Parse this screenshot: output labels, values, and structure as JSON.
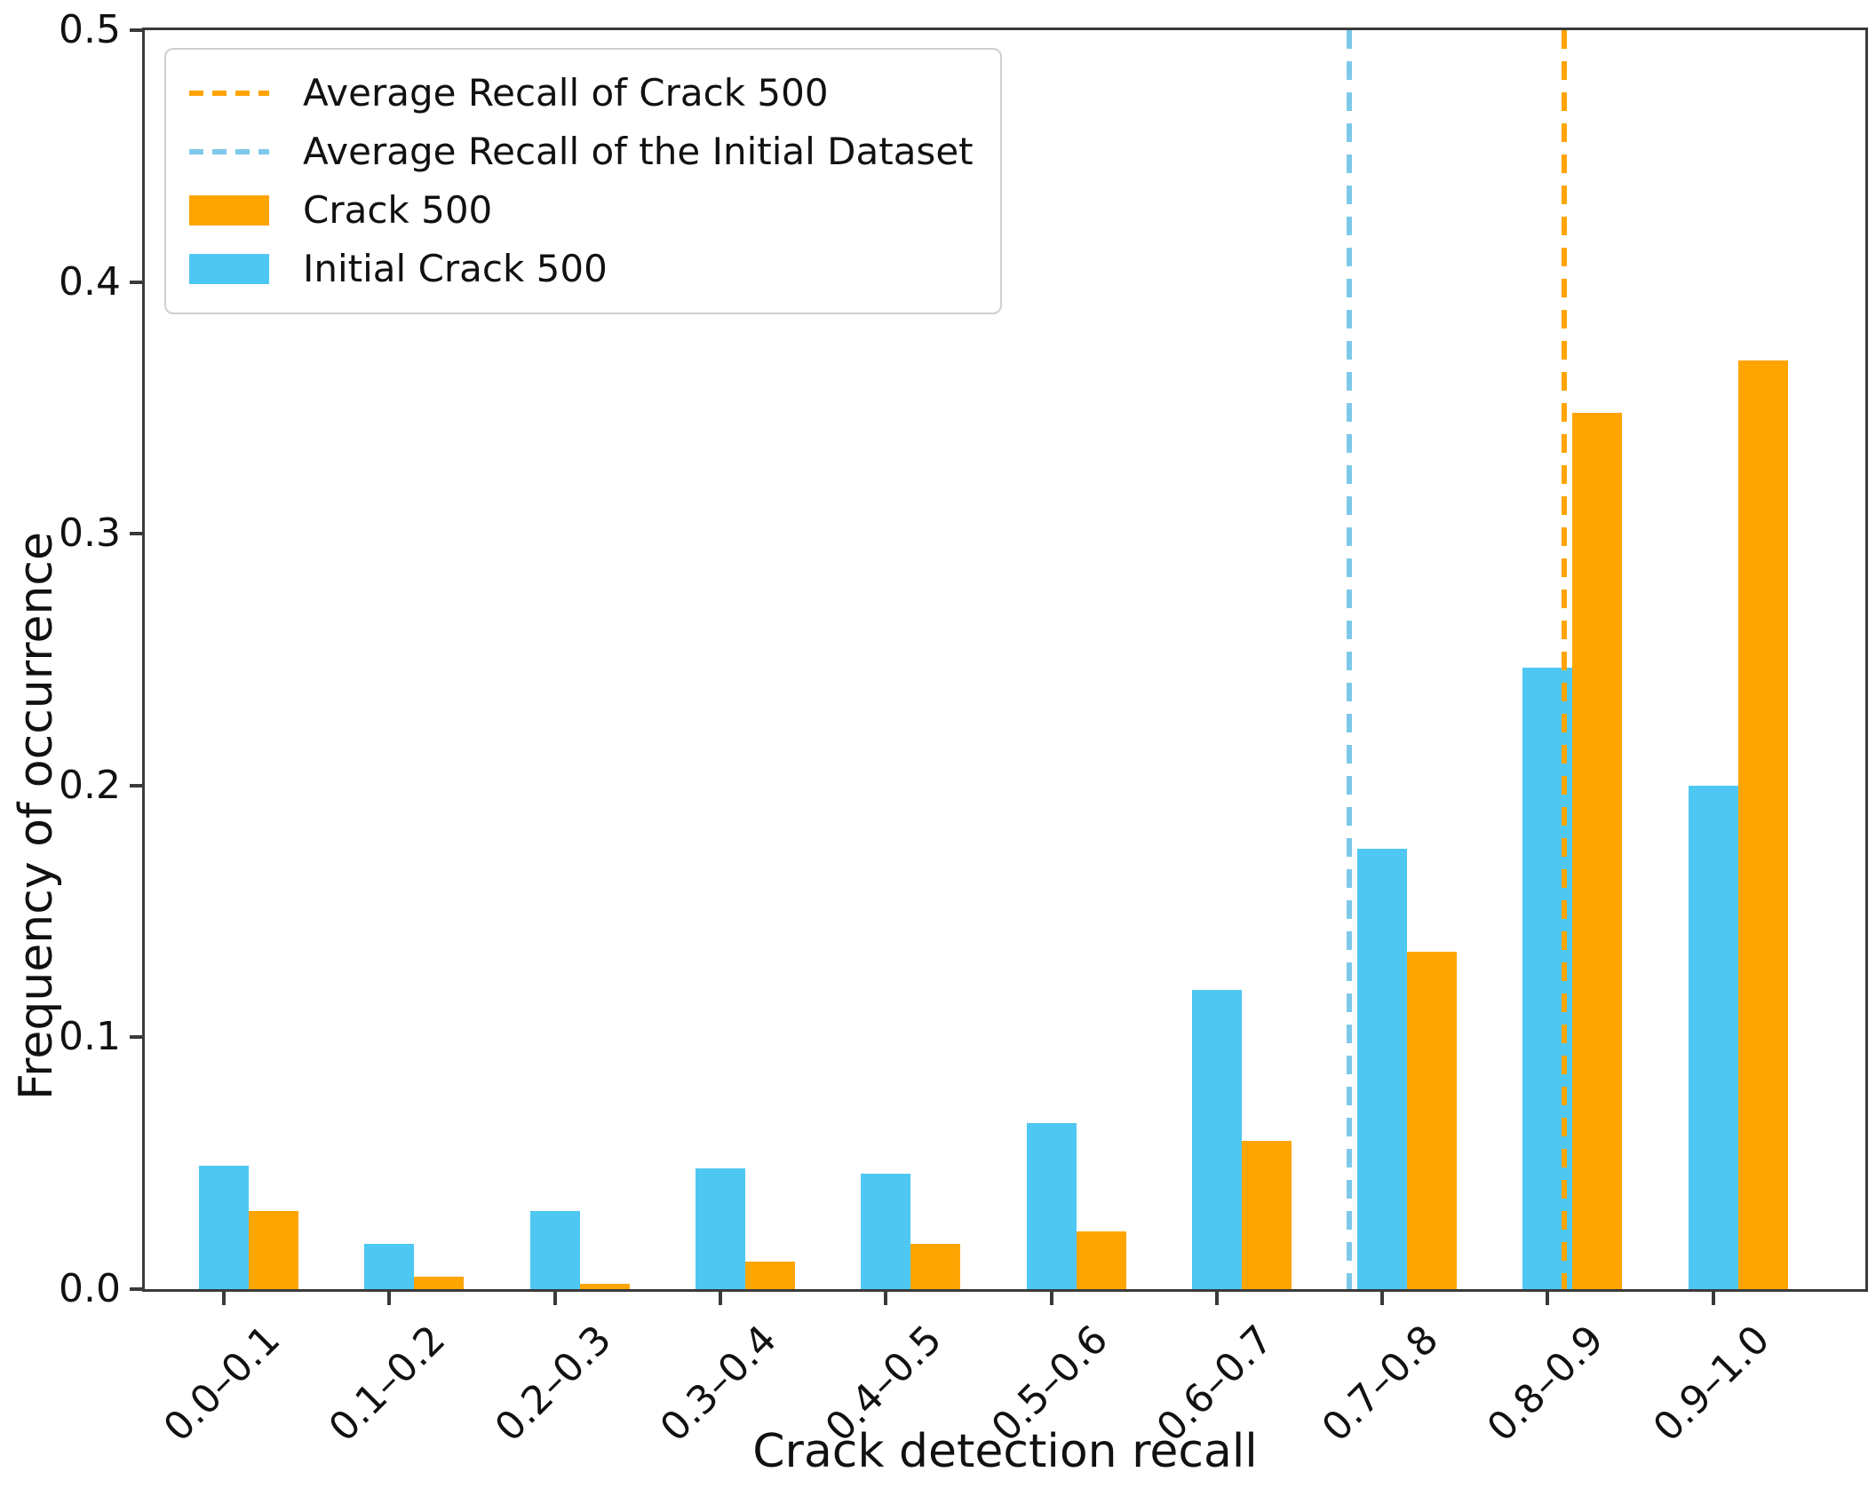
{
  "chart_data": {
    "type": "bar",
    "title": "",
    "xlabel": "Crack detection recall",
    "ylabel": "Frequency of occurrence",
    "categories": [
      "0.0–0.1",
      "0.1–0.2",
      "0.2–0.3",
      "0.3–0.4",
      "0.4–0.5",
      "0.5–0.6",
      "0.6–0.7",
      "0.7–0.8",
      "0.8–0.9",
      "0.9–1.0"
    ],
    "series": [
      {
        "name": "Initial Crack 500",
        "color": "#4EC7F2",
        "values": [
          0.049,
          0.018,
          0.031,
          0.048,
          0.046,
          0.066,
          0.119,
          0.175,
          0.247,
          0.2
        ]
      },
      {
        "name": "Crack 500",
        "color": "#FFA502",
        "values": [
          0.031,
          0.005,
          0.002,
          0.011,
          0.018,
          0.023,
          0.059,
          0.134,
          0.348,
          0.369
        ]
      }
    ],
    "vlines": [
      {
        "label": "Average Recall of Crack 500",
        "x": 0.86,
        "color": "#FFA502",
        "style": "dashed"
      },
      {
        "label": "Average Recall of the Initial Dataset",
        "x": 0.73,
        "color": "#7EC9E9",
        "style": "dashed"
      }
    ],
    "legend": {
      "position": "upper left",
      "entries": [
        {
          "type": "line",
          "label": "Average Recall of Crack 500",
          "color": "#FFA502"
        },
        {
          "type": "line",
          "label": "Average Recall of the Initial Dataset",
          "color": "#7EC9E9"
        },
        {
          "type": "patch",
          "label": "Crack 500",
          "color": "#FFA502"
        },
        {
          "type": "patch",
          "label": "Initial Crack 500",
          "color": "#4EC7F2"
        }
      ]
    },
    "ylim": [
      0,
      0.5
    ],
    "yticks": [
      "0.0",
      "0.1",
      "0.2",
      "0.3",
      "0.4",
      "0.5"
    ],
    "grid": false,
    "axis_color": "#3a3a3a"
  }
}
